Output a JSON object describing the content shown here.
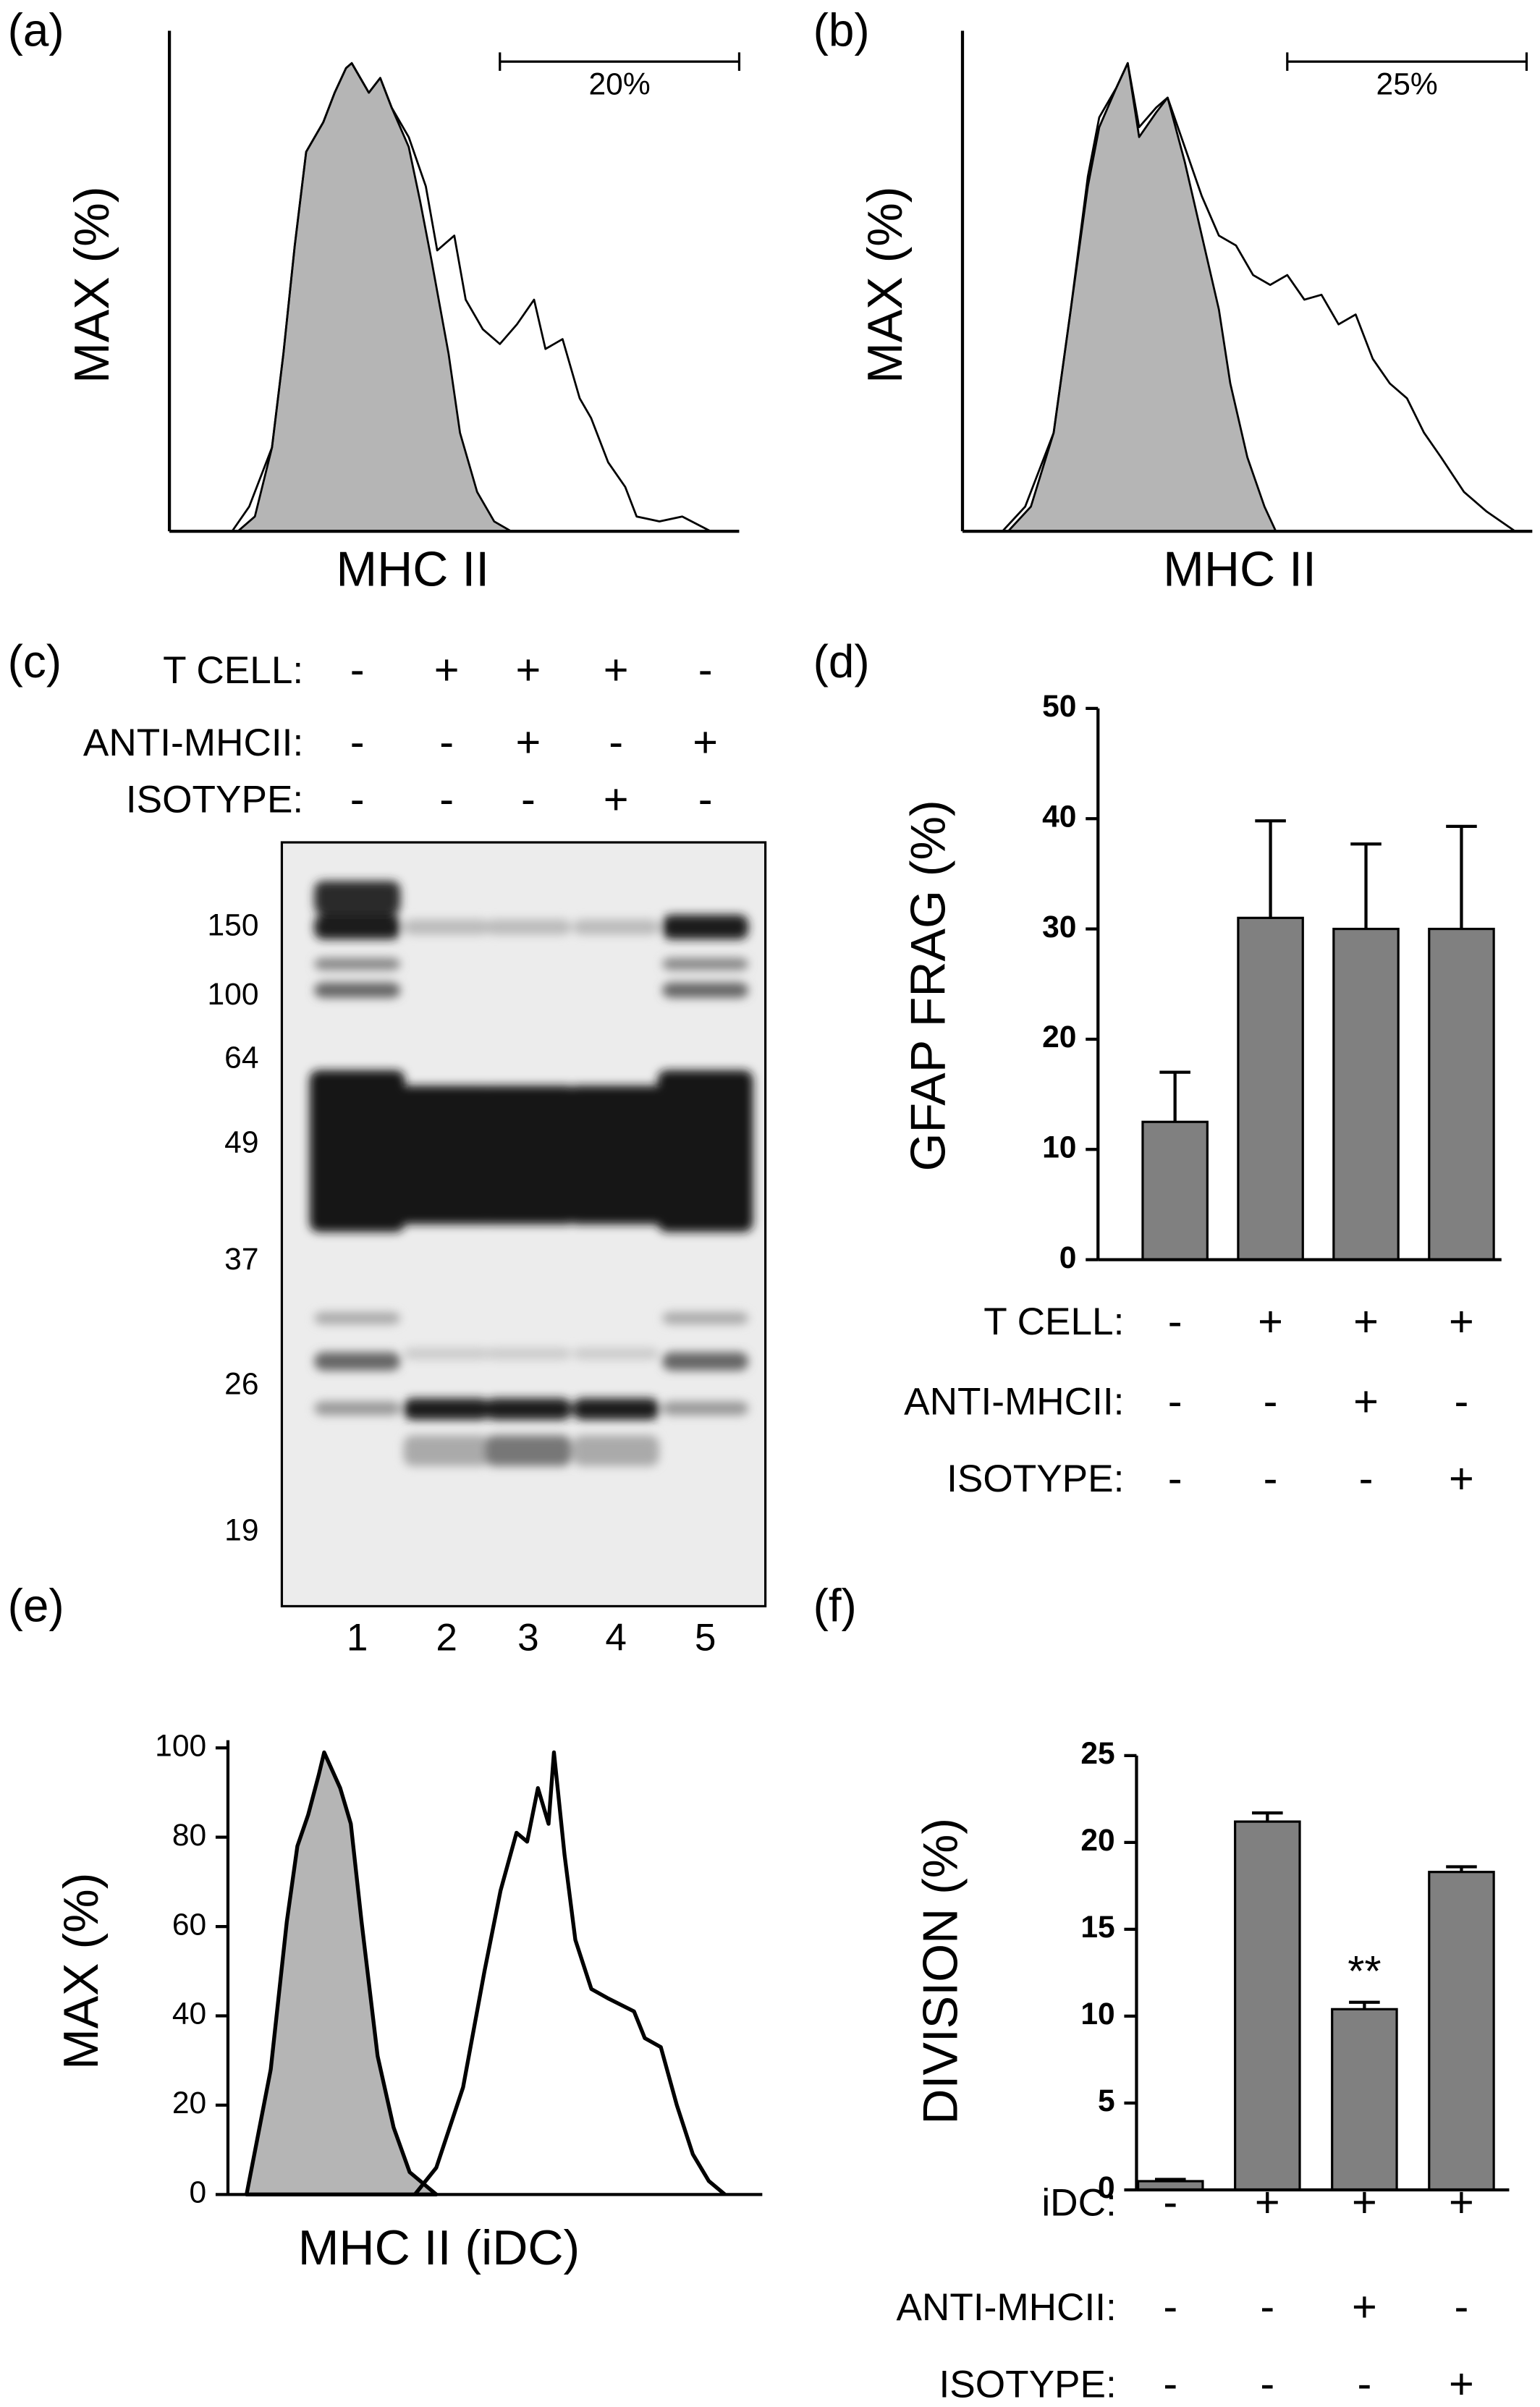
{
  "chart_data": [
    {
      "type": "area",
      "title": "(a)",
      "ylabel": "MAX (%)",
      "xlabel": "MHC II",
      "xlim": [
        0,
        100
      ],
      "ylim": [
        0,
        100
      ],
      "gate": {
        "label": "20%",
        "range": [
          58,
          100
        ]
      },
      "series": [
        {
          "color": "#b5b5b5",
          "filled": true,
          "x": [
            12,
            15,
            18,
            20,
            22,
            24,
            27,
            29,
            31,
            32,
            35,
            37,
            39,
            42,
            44,
            46,
            49,
            51,
            54,
            57,
            60
          ],
          "values": [
            0,
            3,
            17,
            36,
            58,
            77,
            83,
            89,
            94,
            95,
            89,
            92,
            86,
            78,
            67,
            55,
            36,
            20,
            8,
            2,
            0
          ]
        },
        {
          "color": "#000000",
          "filled": false,
          "x": [
            11,
            14,
            18,
            20,
            22,
            24,
            27,
            29,
            31,
            32,
            35,
            37,
            39,
            42,
            45,
            47,
            50,
            52,
            55,
            58,
            61,
            64,
            66,
            69,
            72,
            74,
            77,
            80,
            82,
            86,
            90,
            95
          ],
          "values": [
            0,
            5,
            17,
            36,
            58,
            77,
            83,
            89,
            94,
            95,
            89,
            92,
            86,
            80,
            70,
            57,
            60,
            47,
            41,
            38,
            42,
            47,
            37,
            39,
            27,
            23,
            14,
            9,
            3,
            2,
            3,
            0
          ]
        }
      ]
    },
    {
      "type": "area",
      "title": "(b)",
      "ylabel": "MAX (%)",
      "xlabel": "MHC II",
      "xlim": [
        0,
        100
      ],
      "ylim": [
        0,
        100
      ],
      "gate": {
        "label": "25%",
        "range": [
          57,
          99
        ]
      },
      "series": [
        {
          "color": "#b5b5b5",
          "filled": true,
          "x": [
            8,
            12,
            16,
            19,
            22,
            24,
            27,
            29,
            31,
            34,
            36,
            39,
            42,
            45,
            47,
            50,
            53,
            55
          ],
          "values": [
            0,
            5,
            20,
            45,
            70,
            82,
            90,
            95,
            80,
            85,
            88,
            75,
            60,
            45,
            30,
            15,
            5,
            0
          ]
        },
        {
          "color": "#000000",
          "filled": false,
          "x": [
            7,
            11,
            16,
            19,
            22,
            24,
            27,
            29,
            31,
            34,
            36,
            39,
            42,
            45,
            48,
            51,
            54,
            57,
            60,
            63,
            66,
            69,
            72,
            75,
            78,
            81,
            84,
            88,
            92,
            97
          ],
          "values": [
            0,
            5,
            20,
            45,
            72,
            84,
            90,
            95,
            82,
            86,
            88,
            78,
            68,
            60,
            58,
            52,
            50,
            52,
            47,
            48,
            42,
            44,
            35,
            30,
            27,
            20,
            15,
            8,
            4,
            0
          ]
        }
      ]
    },
    {
      "type": "blot",
      "title": "(c)",
      "conditions": [
        {
          "label": "T CELL:",
          "signs": [
            "-",
            "+",
            "+",
            "+",
            "-"
          ]
        },
        {
          "label": "ANTI-MHCII:",
          "signs": [
            "-",
            "-",
            "+",
            "-",
            "+"
          ]
        },
        {
          "label": "ISOTYPE:",
          "signs": [
            "-",
            "-",
            "-",
            "+",
            "-"
          ]
        }
      ],
      "mw_markers": [
        150,
        100,
        64,
        49,
        37,
        26,
        19
      ],
      "lanes": [
        "1",
        "2",
        "3",
        "4",
        "5"
      ]
    },
    {
      "type": "bar",
      "title": "(d)",
      "ylabel": "GFAP FRAG (%)",
      "color": "#808080",
      "values": [
        12.5,
        31,
        30,
        30
      ],
      "errors": [
        4.5,
        8.8,
        7.7,
        9.3
      ],
      "ylim": [
        0,
        50
      ],
      "yticks": [
        0,
        10,
        20,
        30,
        40,
        50
      ],
      "conditions": [
        {
          "label": "T CELL:",
          "signs": [
            "-",
            "+",
            "+",
            "+"
          ]
        },
        {
          "label": "ANTI-MHCII:",
          "signs": [
            "-",
            "-",
            "+",
            "-"
          ]
        },
        {
          "label": "ISOTYPE:",
          "signs": [
            "-",
            "-",
            "-",
            "+"
          ]
        }
      ]
    },
    {
      "type": "area",
      "title": "(e)",
      "ylabel": "MAX (%)",
      "xlabel": "MHC II (iDC)",
      "xlim": [
        0,
        100
      ],
      "ylim": [
        0,
        100
      ],
      "yticks": [
        0,
        20,
        40,
        60,
        80,
        100
      ],
      "series": [
        {
          "color": "#b5b5b5",
          "filled": true,
          "x": [
            3.5,
            8,
            11,
            13,
            15,
            17,
            18,
            21,
            23,
            25,
            28,
            31,
            34,
            37,
            39
          ],
          "values": [
            0,
            28,
            61,
            78,
            85,
            94,
            99,
            91,
            83,
            61,
            31,
            15,
            5,
            2,
            0
          ]
        },
        {
          "color": "#000000",
          "filled": false,
          "x": [
            35,
            39,
            44,
            48,
            51,
            54,
            56,
            58,
            60,
            61,
            63,
            65,
            68,
            71,
            76,
            78,
            81,
            84,
            87,
            90,
            93
          ],
          "values": [
            0,
            6,
            24,
            50,
            68,
            81,
            79,
            91,
            83,
            99,
            76,
            57,
            46,
            44,
            41,
            35,
            33,
            20,
            9,
            3,
            0
          ]
        }
      ]
    },
    {
      "type": "bar",
      "title": "(f)",
      "ylabel": "DIVISION (%)",
      "color": "#808080",
      "values": [
        0.5,
        21.2,
        10.4,
        18.3
      ],
      "errors": [
        0.1,
        0.5,
        0.4,
        0.3
      ],
      "significance": [
        null,
        null,
        "**",
        null
      ],
      "ylim": [
        0,
        25
      ],
      "yticks": [
        0,
        5,
        10,
        15,
        20,
        25
      ],
      "conditions": [
        {
          "label": "iDC:",
          "signs": [
            "-",
            "+",
            "+",
            "+"
          ]
        },
        {
          "label": "ANTI-MHCII:",
          "signs": [
            "-",
            "-",
            "+",
            "-"
          ]
        },
        {
          "label": "ISOTYPE:",
          "signs": [
            "-",
            "-",
            "-",
            "+"
          ]
        }
      ]
    }
  ]
}
